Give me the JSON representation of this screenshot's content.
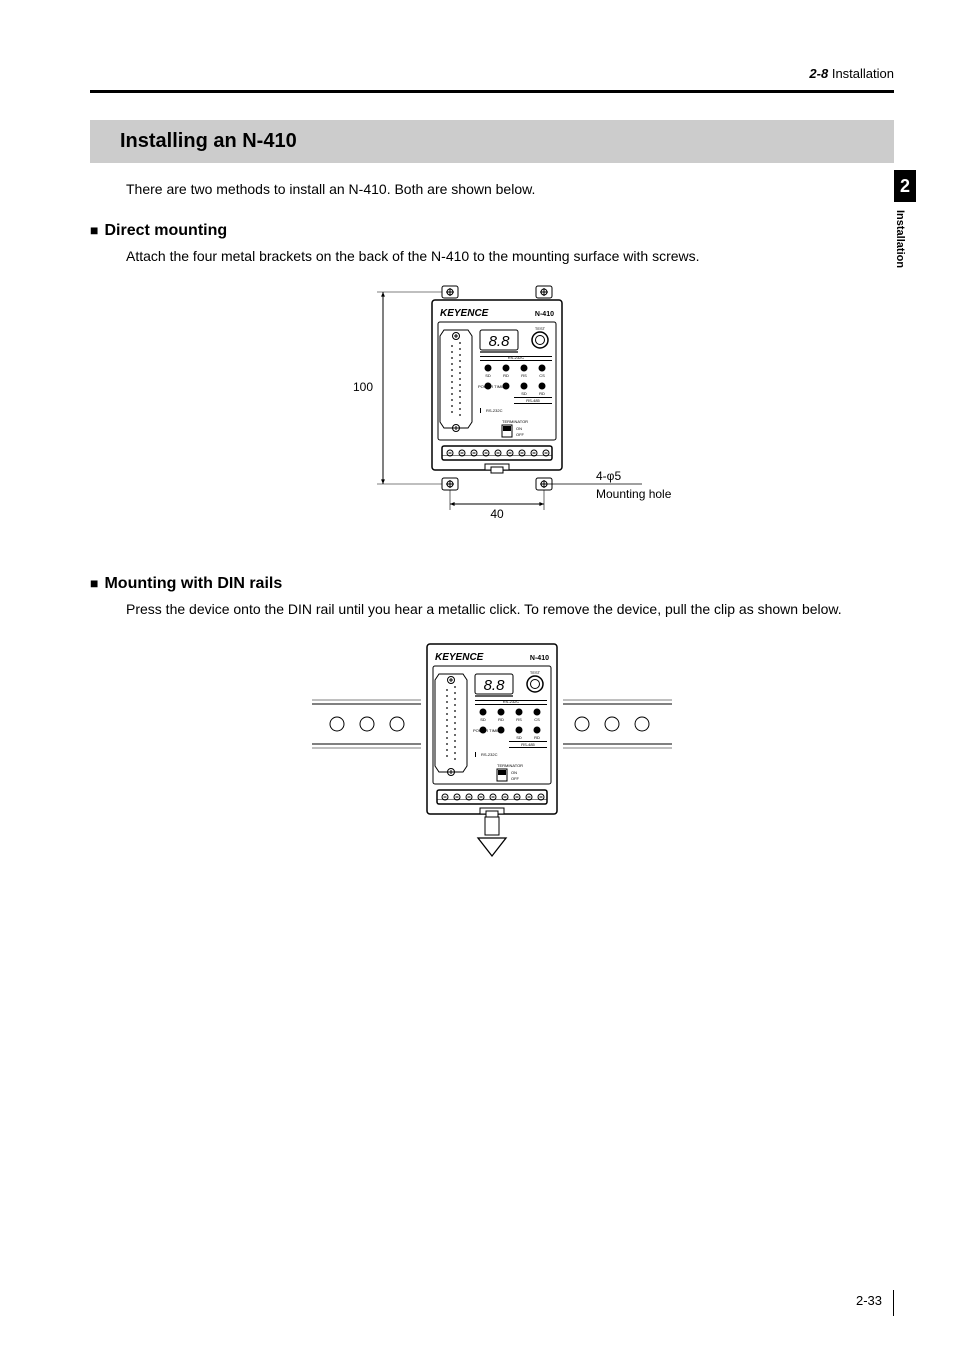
{
  "header": {
    "section_num": "2-8",
    "section_name": "Installation"
  },
  "tab": {
    "num": "2",
    "label": "Installation"
  },
  "page_number": "2-33",
  "title_bar": "Installing an N-410",
  "intro_text": "There are two methods to install an N-410. Both are shown below.",
  "sub1": {
    "heading": "Direct mounting",
    "text": "Attach the four metal brackets on the back of the N-410 to the mounting surface with screws."
  },
  "sub2": {
    "heading": "Mounting with DIN rails",
    "text": "Press the device onto the DIN rail until you hear a metallic click. To remove the device, pull the clip as shown below."
  },
  "device": {
    "brand": "KEYENCE",
    "model": "N-410",
    "display": "8.8",
    "test_label": "TEST",
    "row1_labels": [
      "SD",
      "RD",
      "RS",
      "CS"
    ],
    "row1_header": "RS-232C",
    "row2_left": "POWER TIMING",
    "row2_labels": [
      "SD",
      "RD"
    ],
    "row2_footer": "RS-485",
    "switch_label": "RS-232C",
    "term_label": "TERMINATOR",
    "term_on": "ON",
    "term_off": "OFF"
  },
  "dim": {
    "height": "100",
    "width": "40",
    "hole_spec": "4-φ5",
    "hole_label": "Mounting hole"
  },
  "style": {
    "bg": "#ffffff",
    "ink": "#000000",
    "bar_fill": "#cccccc",
    "led_fill": "#ffffff",
    "device_body": "#ffffff",
    "stroke_w": 1,
    "stroke_bold": 1.5,
    "font_body": 14,
    "font_label": 8,
    "font_dim": 12,
    "font_tiny": 4
  }
}
